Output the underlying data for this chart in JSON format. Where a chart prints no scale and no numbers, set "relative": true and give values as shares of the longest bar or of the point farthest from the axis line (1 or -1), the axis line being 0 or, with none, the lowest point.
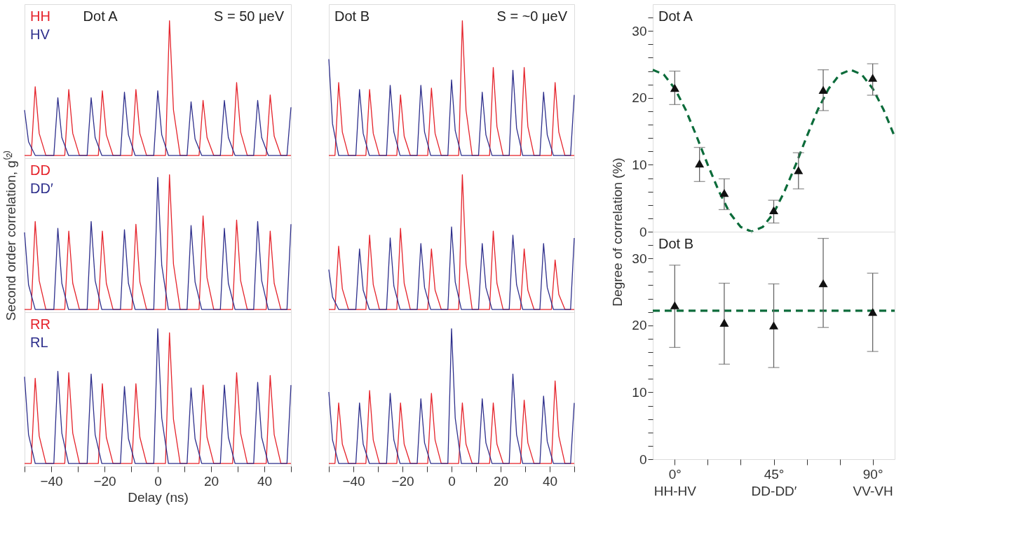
{
  "chart_data": [
    {
      "type": "line",
      "relative": true,
      "xlim": [
        -50,
        50
      ],
      "tick_labels": false,
      "annotations": [
        "Dot A",
        "S = 50 μeV"
      ],
      "series": [
        {
          "name": "HH",
          "color": "#e5232b",
          "x": [
            -50,
            -47.5,
            -46,
            -44.5,
            -42,
            -34.9,
            -33.4,
            -31.9,
            -29.4,
            -22.3,
            -20.8,
            -19.3,
            -16.8,
            -9.7,
            -8.2,
            -6.7,
            -4.2,
            2.9,
            4.4,
            5.9,
            8.4,
            15.5,
            17,
            18.5,
            21,
            28.1,
            29.6,
            31.1,
            33.6,
            40.7,
            42.2,
            43.7,
            46.2,
            50
          ],
          "values": [
            0.02,
            0.02,
            0.52,
            0.18,
            0.02,
            0.02,
            0.5,
            0.18,
            0.02,
            0.02,
            0.49,
            0.17,
            0.02,
            0.02,
            0.5,
            0.18,
            0.02,
            0.02,
            1,
            0.35,
            0.02,
            0.02,
            0.42,
            0.15,
            0.02,
            0.02,
            0.55,
            0.19,
            0.02,
            0.02,
            0.46,
            0.16,
            0.02,
            0.02
          ]
        },
        {
          "name": "HV",
          "color": "#2e2f8c",
          "x": [
            -50,
            -48.5,
            -46,
            -39,
            -37.5,
            -36,
            -33.5,
            -26.5,
            -25,
            -23.5,
            -21,
            -14,
            -12.5,
            -11,
            -8.5,
            -1.5,
            0,
            1.5,
            4,
            11,
            12.5,
            14,
            16.5,
            23.5,
            25,
            26.5,
            29,
            36,
            37.5,
            39,
            41.5,
            48.5,
            50
          ],
          "values": [
            0.35,
            0.12,
            0.02,
            0.02,
            0.44,
            0.15,
            0.02,
            0.02,
            0.44,
            0.15,
            0.02,
            0.02,
            0.48,
            0.17,
            0.02,
            0.02,
            0.49,
            0.17,
            0.02,
            0.02,
            0.41,
            0.14,
            0.02,
            0.02,
            0.42,
            0.15,
            0.02,
            0.02,
            0.42,
            0.15,
            0.02,
            0.02,
            0.37
          ]
        }
      ]
    },
    {
      "type": "line",
      "relative": true,
      "xlim": [
        -50,
        50
      ],
      "tick_labels": false,
      "ylabel": "Second order correlation, g⁽²⁾",
      "series": [
        {
          "name": "DD",
          "color": "#e5232b",
          "x": [
            -50,
            -47.5,
            -46,
            -44.5,
            -42,
            -34.9,
            -33.4,
            -31.9,
            -29.4,
            -22.3,
            -20.8,
            -19.3,
            -16.8,
            -9.7,
            -8.2,
            -6.7,
            -4.2,
            2.9,
            4.4,
            5.9,
            8.4,
            15.5,
            17,
            18.5,
            21,
            28.1,
            29.6,
            31.1,
            33.6,
            40.7,
            42.2,
            43.7,
            46.2,
            50
          ],
          "values": [
            0.02,
            0.02,
            0.66,
            0.23,
            0.02,
            0.02,
            0.59,
            0.21,
            0.02,
            0.02,
            0.59,
            0.21,
            0.02,
            0.02,
            0.64,
            0.22,
            0.02,
            0.02,
            1,
            0.35,
            0.02,
            0.02,
            0.7,
            0.25,
            0.02,
            0.02,
            0.67,
            0.23,
            0.02,
            0.02,
            0.59,
            0.21,
            0.02,
            0.02
          ]
        },
        {
          "name": "DD′",
          "color": "#2e2f8c",
          "x": [
            -50,
            -48.5,
            -46,
            -39,
            -37.5,
            -36,
            -33.5,
            -26.5,
            -25,
            -23.5,
            -21,
            -14,
            -12.5,
            -11,
            -8.5,
            -1.5,
            0,
            1.5,
            4,
            11,
            12.5,
            14,
            16.5,
            23.5,
            25,
            26.5,
            29,
            36,
            37.5,
            39,
            41.5,
            48.5,
            50
          ],
          "values": [
            0.58,
            0.2,
            0.02,
            0.02,
            0.61,
            0.21,
            0.02,
            0.02,
            0.66,
            0.23,
            0.02,
            0.02,
            0.6,
            0.21,
            0.02,
            0.02,
            0.98,
            0.34,
            0.02,
            0.02,
            0.63,
            0.22,
            0.02,
            0.02,
            0.61,
            0.21,
            0.02,
            0.02,
            0.66,
            0.23,
            0.02,
            0.02,
            0.64
          ]
        }
      ]
    },
    {
      "type": "line",
      "relative": true,
      "xlim": [
        -50,
        50
      ],
      "tick_labels": "x",
      "xlabel": "Delay (ns)",
      "xticks": [
        {
          "value": -50,
          "label": null
        },
        -40,
        {
          "value": -30,
          "label": null
        },
        -20,
        {
          "value": -10,
          "label": null
        },
        0,
        {
          "value": 10,
          "label": null
        },
        20,
        {
          "value": 30,
          "label": null
        },
        40,
        {
          "value": 50,
          "label": null
        }
      ],
      "series": [
        {
          "name": "RR",
          "color": "#e5232b",
          "x": [
            -50,
            -47.5,
            -46,
            -44.5,
            -42,
            -34.9,
            -33.4,
            -31.9,
            -29.4,
            -22.3,
            -20.8,
            -19.3,
            -16.8,
            -9.7,
            -8.2,
            -6.7,
            -4.2,
            2.9,
            4.4,
            5.9,
            8.4,
            15.5,
            17,
            18.5,
            21,
            28.1,
            29.6,
            31.1,
            33.6,
            40.7,
            42.2,
            43.7,
            46.2,
            50
          ],
          "values": [
            0.02,
            0.02,
            0.64,
            0.22,
            0.02,
            0.02,
            0.68,
            0.24,
            0.02,
            0.02,
            0.6,
            0.21,
            0.02,
            0.02,
            0.6,
            0.21,
            0.02,
            0.02,
            0.97,
            0.34,
            0.02,
            0.02,
            0.59,
            0.21,
            0.02,
            0.02,
            0.68,
            0.24,
            0.02,
            0.02,
            0.66,
            0.23,
            0.02,
            0.02
          ]
        },
        {
          "name": "RL",
          "color": "#2e2f8c",
          "x": [
            -50,
            -48.5,
            -46,
            -39,
            -37.5,
            -36,
            -33.5,
            -26.5,
            -25,
            -23.5,
            -21,
            -14,
            -12.5,
            -11,
            -8.5,
            -1.5,
            0,
            1.5,
            4,
            11,
            12.5,
            14,
            16.5,
            23.5,
            25,
            26.5,
            29,
            36,
            37.5,
            39,
            41.5,
            48.5,
            50
          ],
          "values": [
            0.65,
            0.23,
            0.02,
            0.02,
            0.69,
            0.24,
            0.02,
            0.02,
            0.67,
            0.23,
            0.02,
            0.02,
            0.58,
            0.2,
            0.02,
            0.02,
            1,
            0.35,
            0.02,
            0.02,
            0.57,
            0.2,
            0.02,
            0.02,
            0.59,
            0.21,
            0.02,
            0.02,
            0.61,
            0.21,
            0.02,
            0.02,
            0.59
          ]
        }
      ]
    },
    {
      "type": "line",
      "relative": true,
      "xlim": [
        -50,
        50
      ],
      "tick_labels": false,
      "annotations": [
        "Dot B",
        "S = ~0 μeV"
      ],
      "series": [
        {
          "color": "#e5232b",
          "x": [
            -50,
            -47.5,
            -46,
            -44.5,
            -42,
            -34.9,
            -33.4,
            -31.9,
            -29.4,
            -22.3,
            -20.8,
            -19.3,
            -16.8,
            -9.7,
            -8.2,
            -6.7,
            -4.2,
            2.9,
            4.4,
            5.9,
            8.4,
            15.5,
            17,
            18.5,
            21,
            28.1,
            29.6,
            31.1,
            33.6,
            40.7,
            42.2,
            43.7,
            46.2,
            50
          ],
          "values": [
            0.02,
            0.02,
            0.55,
            0.19,
            0.02,
            0.02,
            0.5,
            0.18,
            0.02,
            0.02,
            0.46,
            0.16,
            0.02,
            0.02,
            0.51,
            0.18,
            0.02,
            0.02,
            1,
            0.35,
            0.02,
            0.02,
            0.66,
            0.23,
            0.02,
            0.02,
            0.66,
            0.23,
            0.02,
            0.02,
            0.55,
            0.19,
            0.02,
            0.02
          ]
        },
        {
          "color": "#2e2f8c",
          "x": [
            -50,
            -48.5,
            -46,
            -39,
            -37.5,
            -36,
            -33.5,
            -26.5,
            -25,
            -23.5,
            -21,
            -14,
            -12.5,
            -11,
            -8.5,
            -1.5,
            0,
            1.5,
            4,
            11,
            12.5,
            14,
            16.5,
            23.5,
            25,
            26.5,
            29,
            36,
            37.5,
            39,
            41.5,
            48.5,
            50
          ],
          "values": [
            0.72,
            0.25,
            0.02,
            0.02,
            0.5,
            0.18,
            0.02,
            0.02,
            0.53,
            0.19,
            0.02,
            0.02,
            0.53,
            0.19,
            0.02,
            0.02,
            0.57,
            0.2,
            0.02,
            0.02,
            0.48,
            0.17,
            0.02,
            0.02,
            0.64,
            0.22,
            0.02,
            0.02,
            0.48,
            0.17,
            0.02,
            0.02,
            0.46
          ]
        }
      ]
    },
    {
      "type": "line",
      "relative": true,
      "xlim": [
        -50,
        50
      ],
      "tick_labels": false,
      "series": [
        {
          "color": "#e5232b",
          "x": [
            -50,
            -47.5,
            -46,
            -44.5,
            -42,
            -34.9,
            -33.4,
            -31.9,
            -29.4,
            -22.3,
            -20.8,
            -19.3,
            -16.8,
            -9.7,
            -8.2,
            -6.7,
            -4.2,
            2.9,
            4.4,
            5.9,
            8.4,
            15.5,
            17,
            18.5,
            21,
            28.1,
            29.6,
            31.1,
            33.6,
            40.7,
            42.2,
            43.7,
            46.2,
            50
          ],
          "values": [
            0.02,
            0.02,
            0.48,
            0.17,
            0.02,
            0.02,
            0.56,
            0.2,
            0.02,
            0.02,
            0.61,
            0.21,
            0.02,
            0.02,
            0.46,
            0.16,
            0.02,
            0.02,
            1,
            0.35,
            0.02,
            0.02,
            0.59,
            0.21,
            0.02,
            0.02,
            0.46,
            0.16,
            0.02,
            0.02,
            0.38,
            0.13,
            0.02,
            0.02
          ]
        },
        {
          "color": "#2e2f8c",
          "x": [
            -50,
            -48.5,
            -46,
            -39,
            -37.5,
            -36,
            -33.5,
            -26.5,
            -25,
            -23.5,
            -21,
            -14,
            -12.5,
            -11,
            -8.5,
            -1.5,
            0,
            1.5,
            4,
            11,
            12.5,
            14,
            16.5,
            23.5,
            25,
            26.5,
            29,
            36,
            37.5,
            39,
            41.5,
            48.5,
            50
          ],
          "values": [
            0.31,
            0.11,
            0.02,
            0.02,
            0.46,
            0.16,
            0.02,
            0.02,
            0.54,
            0.19,
            0.02,
            0.02,
            0.5,
            0.18,
            0.02,
            0.02,
            0.62,
            0.22,
            0.02,
            0.02,
            0.5,
            0.18,
            0.02,
            0.02,
            0.56,
            0.2,
            0.02,
            0.02,
            0.5,
            0.18,
            0.02,
            0.02,
            0.54
          ]
        }
      ]
    },
    {
      "type": "line",
      "relative": true,
      "xlim": [
        -50,
        50
      ],
      "tick_labels": "x",
      "xticks": [
        {
          "value": -50,
          "label": null
        },
        -40,
        {
          "value": -30,
          "label": null
        },
        -20,
        {
          "value": -10,
          "label": null
        },
        0,
        {
          "value": 10,
          "label": null
        },
        20,
        {
          "value": 30,
          "label": null
        },
        40,
        {
          "value": 50,
          "label": null
        }
      ],
      "series": [
        {
          "color": "#e5232b",
          "x": [
            -50,
            -47.5,
            -46,
            -44.5,
            -42,
            -34.9,
            -33.4,
            -31.9,
            -29.4,
            -22.3,
            -20.8,
            -19.3,
            -16.8,
            -9.7,
            -8.2,
            -6.7,
            -4.2,
            2.9,
            4.4,
            5.9,
            8.4,
            15.5,
            17,
            18.5,
            21,
            28.1,
            29.6,
            31.1,
            33.6,
            40.7,
            42.2,
            43.7,
            46.2,
            50
          ],
          "values": [
            0.02,
            0.02,
            0.46,
            0.16,
            0.02,
            0.02,
            0.55,
            0.19,
            0.02,
            0.02,
            0.46,
            0.16,
            0.02,
            0.02,
            0.53,
            0.19,
            0.02,
            0.02,
            0.46,
            0.16,
            0.02,
            0.02,
            0.46,
            0.16,
            0.02,
            0.02,
            0.48,
            0.17,
            0.02,
            0.02,
            0.62,
            0.22,
            0.02,
            0.02
          ]
        },
        {
          "color": "#2e2f8c",
          "x": [
            -50,
            -48.5,
            -46,
            -39,
            -37.5,
            -36,
            -33.5,
            -26.5,
            -25,
            -23.5,
            -21,
            -14,
            -12.5,
            -11,
            -8.5,
            -1.5,
            0,
            1.5,
            4,
            11,
            12.5,
            14,
            16.5,
            23.5,
            25,
            26.5,
            29,
            36,
            37.5,
            39,
            41.5,
            48.5,
            50
          ],
          "values": [
            0.54,
            0.19,
            0.02,
            0.02,
            0.46,
            0.16,
            0.02,
            0.02,
            0.53,
            0.19,
            0.02,
            0.02,
            0.49,
            0.17,
            0.02,
            0.02,
            1,
            0.35,
            0.02,
            0.02,
            0.49,
            0.17,
            0.02,
            0.02,
            0.67,
            0.23,
            0.02,
            0.02,
            0.51,
            0.18,
            0.02,
            0.02,
            0.46
          ]
        }
      ]
    },
    {
      "type": "scatter",
      "xlim": [
        -10,
        100
      ],
      "ylim": [
        0,
        34
      ],
      "tick_labels": "y",
      "ylabel": "Degree of correlation (%)",
      "annotations": [
        "Dot A"
      ],
      "yticks": [
        0,
        {
          "value": 2,
          "label": null
        },
        {
          "value": 4,
          "label": null
        },
        {
          "value": 6,
          "label": null
        },
        {
          "value": 8,
          "label": null
        },
        10,
        {
          "value": 12,
          "label": null
        },
        {
          "value": 14,
          "label": null
        },
        {
          "value": 16,
          "label": null
        },
        {
          "value": 18,
          "label": null
        },
        20,
        {
          "value": 22,
          "label": null
        },
        {
          "value": 24,
          "label": null
        },
        {
          "value": 26,
          "label": null
        },
        {
          "value": 28,
          "label": null
        },
        30,
        {
          "value": 32,
          "label": null
        }
      ],
      "series": [
        {
          "type": "line",
          "line_style": "dashed",
          "color": "#0b6b3a",
          "x": [
            -10,
            -5,
            0,
            5,
            10,
            15,
            20,
            25,
            30,
            35,
            40,
            45,
            50,
            55,
            60,
            65,
            70,
            75,
            80,
            85,
            90,
            95,
            100
          ],
          "values": [
            24.2,
            23.5,
            21.4,
            18.2,
            14.2,
            10.0,
            6.1,
            2.8,
            0.7,
            0,
            0.7,
            2.8,
            6.1,
            10.0,
            14.2,
            18.2,
            21.4,
            23.5,
            24.2,
            23.5,
            21.4,
            18.2,
            14.2
          ]
        },
        {
          "color": "#111111",
          "marker": "triangle",
          "x": [
            0,
            11.25,
            22.5,
            45,
            56.25,
            67.5,
            90
          ],
          "values": [
            21.5,
            10.2,
            5.8,
            3.2,
            9.2,
            21.2,
            23.0
          ],
          "errors": [
            [
              19.0,
              24.0
            ],
            [
              7.5,
              12.6
            ],
            [
              3.3,
              7.9
            ],
            [
              1.3,
              4.7
            ],
            [
              6.4,
              11.8
            ],
            [
              18.1,
              24.2
            ],
            [
              20.4,
              25.1
            ]
          ]
        }
      ]
    },
    {
      "type": "scatter",
      "xlim": [
        -10,
        100
      ],
      "ylim": [
        0,
        34
      ],
      "annotations": [
        "Dot B"
      ],
      "xticks": [
        {
          "value": 0,
          "label": "0°\nHH-HV"
        },
        {
          "value": 15,
          "label": null
        },
        {
          "value": 30,
          "label": null
        },
        {
          "value": 45,
          "label": "45°\nDD-DD′"
        },
        {
          "value": 60,
          "label": null
        },
        {
          "value": 75,
          "label": null
        },
        {
          "value": 90,
          "label": "90°\nVV-VH"
        }
      ],
      "yticks": [
        0,
        {
          "value": 2,
          "label": null
        },
        {
          "value": 4,
          "label": null
        },
        {
          "value": 6,
          "label": null
        },
        {
          "value": 8,
          "label": null
        },
        10,
        {
          "value": 12,
          "label": null
        },
        {
          "value": 14,
          "label": null
        },
        {
          "value": 16,
          "label": null
        },
        {
          "value": 18,
          "label": null
        },
        20,
        {
          "value": 22,
          "label": null
        },
        {
          "value": 24,
          "label": null
        },
        {
          "value": 26,
          "label": null
        },
        {
          "value": 28,
          "label": null
        },
        30,
        {
          "value": 32,
          "label": null
        }
      ],
      "series": [
        {
          "type": "line",
          "line_style": "dashed",
          "color": "#0b6b3a",
          "x": [
            -10,
            100
          ],
          "values": [
            22.2,
            22.2
          ]
        },
        {
          "color": "#111111",
          "marker": "triangle",
          "x": [
            0,
            22.5,
            45,
            67.5,
            90
          ],
          "values": [
            23.0,
            20.4,
            20.0,
            26.3,
            22.0
          ],
          "errors": [
            [
              16.7,
              29.0
            ],
            [
              14.2,
              26.3
            ],
            [
              13.7,
              26.2
            ],
            [
              19.7,
              33.0
            ],
            [
              16.1,
              27.8
            ]
          ]
        }
      ]
    }
  ]
}
